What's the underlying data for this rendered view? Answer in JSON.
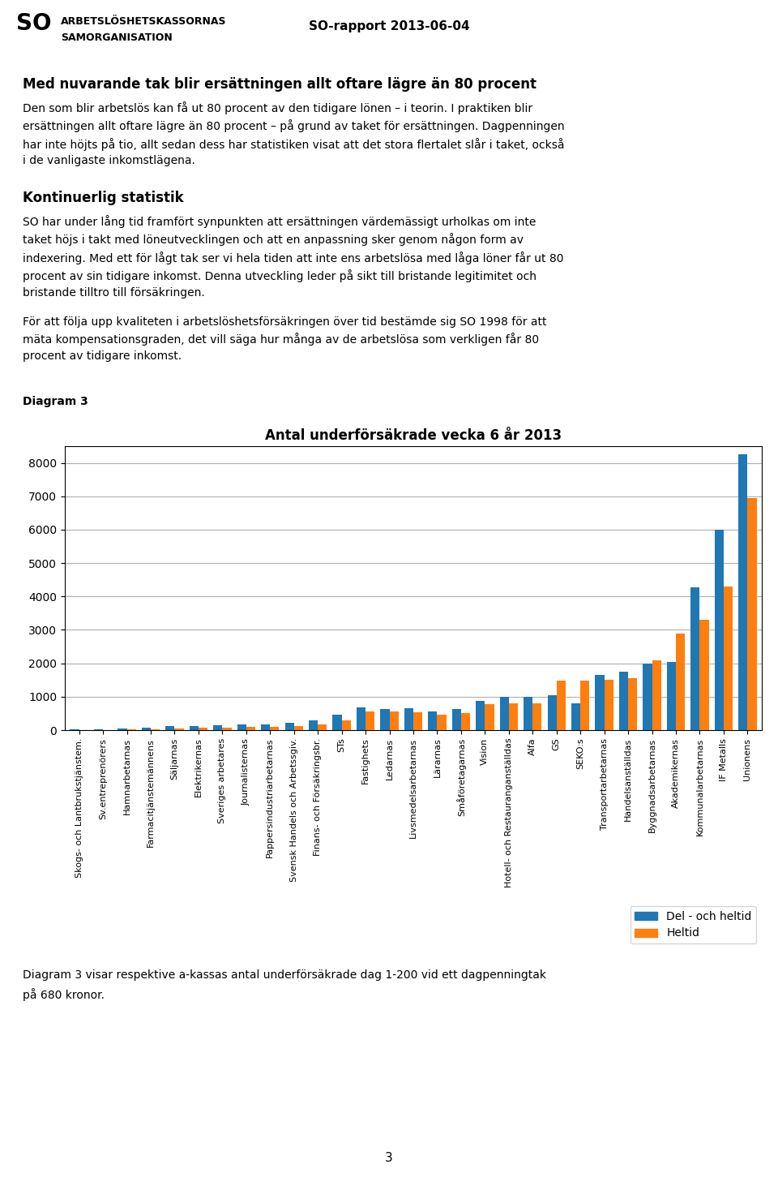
{
  "chart_data": {
    "type": "bar",
    "title": "Antal underförsäkrade vecka 6 år 2013",
    "categories": [
      "Skogs- och Lantbrukstjänstem.",
      "Sv.entreprenörers",
      "Hamnarbetarnas",
      "Farmacitjänstemännens",
      "Säljarnas",
      "Elektrikernas",
      "Sveriges arbetares",
      "Journalisternas",
      "Pappersindustriarbetarnas",
      "Svensk Handels och Arbetssgiv.",
      "Finans- och Försäkringsbr.",
      "STs",
      "Fastighets",
      "Ledarnas",
      "Livsmedelsarbetarnas",
      "Lärarnas",
      "Småföretagarnas",
      "Vision",
      "Hotell- och Restauranganställdas",
      "Alfa",
      "GS",
      "SEKO:s",
      "Transportarbetarnas",
      "Handelsanställdas",
      "Byggnadsarbetarnas",
      "Akademikernas",
      "Kommunalarbetarnas",
      "IF Metalls",
      "Unionens"
    ],
    "series": [
      {
        "name": "Del - och heltid",
        "values": [
          20,
          15,
          50,
          80,
          120,
          130,
          155,
          160,
          175,
          210,
          290,
          470,
          680,
          640,
          660,
          560,
          640,
          870,
          1000,
          1000,
          1040,
          810,
          1650,
          1750,
          1980,
          2050,
          4280,
          6000,
          8250
        ]
      },
      {
        "name": "Heltid",
        "values": [
          5,
          5,
          25,
          30,
          60,
          70,
          80,
          90,
          90,
          130,
          160,
          290,
          560,
          560,
          540,
          450,
          520,
          770,
          800,
          800,
          1480,
          1490,
          1500,
          1550,
          2080,
          2900,
          3300,
          4300,
          6950
        ]
      }
    ],
    "ylim": [
      0,
      8500
    ],
    "yticks": [
      0,
      1000,
      2000,
      3000,
      4000,
      5000,
      6000,
      7000,
      8000
    ],
    "grid": true,
    "legend": "lower right",
    "annotations": [
      "SO",
      "ARBETSLÖSHETSKASSORNAS",
      "SAMORGANISATION",
      "SO-rapport 2013-06-04",
      "Med nuvarande tak blir ersättningen allt oftare lägre än 80 procent",
      "Den som blir arbetslös kan få ut 80 procent av den tidigare lönen – i teorin. I praktiken blir\nersättningen allt oftare lägre än 80 procent – på grund av taket för ersättningen. Dagpenningen\nhar inte höjts på tio, allt sedan dess har statistiken visat att det stora flertalet slår i taket, också\ni de vanligaste inkomstlägena.",
      "Kontinuerlig statistik",
      "SO har under lång tid framfört synpunkten att ersättningen värdemässigt urholkas om inte\ntaket höjs i takt med löneutvecklingen och att en anpassning sker genom någon form av\nindexering. Med ett för lågt tak ser vi hela tiden att inte ens arbetslösa med låga löner får ut 80\nprocent av sin tidigare inkomst. Denna utveckling leder på sikt till bristande legitimitet och\nbristande tilltro till försäkringen.",
      "För att följa upp kvaliteten i arbetslöshetsförsäkringen över tid bestämde sig SO 1998 för att\nmäta kompensationsgraden, det vill säga hur många av de arbetslösa som verkligen får 80\nprocent av tidigare inkomst.",
      "Diagram 3",
      "Diagram 3 visar respektive a-kassas antal underförsäkrade dag 1-200 vid ett dagpenningtak",
      "på 680 kronor.",
      "3"
    ]
  }
}
